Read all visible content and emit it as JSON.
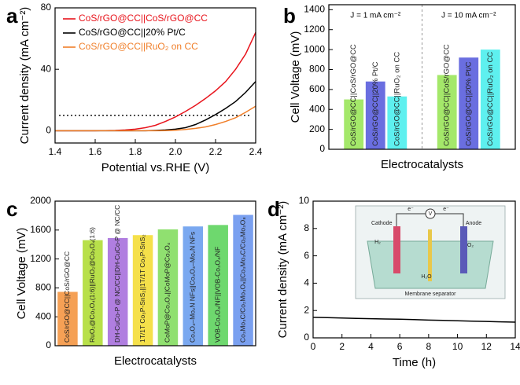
{
  "chart_data": [
    {
      "type": "line",
      "panel_label": "a",
      "xlabel": "Potential vs.RHE (V)",
      "ylabel": "Current density (mA cm⁻²)",
      "x": [
        1.4,
        1.45,
        1.5,
        1.55,
        1.6,
        1.65,
        1.7,
        1.75,
        1.8,
        1.85,
        1.9,
        1.95,
        2.0,
        2.05,
        2.1,
        2.15,
        2.2,
        2.25,
        2.3,
        2.35,
        2.4
      ],
      "series": [
        {
          "name": "CoS/rGO@CC||CoS/rGO@CC",
          "color": "#e8141c",
          "values": [
            0,
            0,
            0,
            0,
            0,
            0.1,
            0.2,
            0.5,
            1,
            2,
            3.5,
            6,
            9,
            12.5,
            16.5,
            21,
            26,
            32,
            40,
            50,
            64
          ]
        },
        {
          "name": "CoS/rGO@CC||20% Pt/C",
          "color": "#000000",
          "values": [
            0,
            0,
            0,
            0,
            0,
            0,
            0,
            0,
            0,
            0,
            0.2,
            0.5,
            1,
            2,
            4,
            7,
            10.5,
            14.5,
            19,
            25,
            32
          ]
        },
        {
          "name": "CoS/rGO@CC||RuO₂ on CC",
          "color": "#f07f2a",
          "values": [
            0,
            0,
            0,
            0,
            0,
            0,
            0,
            0,
            0,
            0,
            0,
            0.1,
            0.3,
            0.8,
            1.5,
            2.5,
            4,
            6,
            8.5,
            12,
            16
          ]
        }
      ],
      "hline": 10,
      "xlim": [
        1.4,
        2.4
      ],
      "xticks": [
        1.4,
        1.6,
        1.8,
        {
          "value": 2,
          "label": "2.0"
        },
        2.2,
        2.4
      ],
      "ylim": [
        -8,
        80
      ],
      "yticks": [
        0,
        40,
        80
      ],
      "legend": "upper left"
    },
    {
      "type": "bar",
      "panel_label": "b",
      "xlabel": "Electrocatalysts",
      "ylabel": "Cell Voltage (mV)",
      "categories": [
        "CoS/rGO@CC||CoS/rGO@CC",
        "CoS/rGO@CC||20% Pt/C",
        "CoS/rGO@CC||RuO₂ on CC"
      ],
      "colors": [
        "#a4e86a",
        "#6a6ee0",
        "#5ef0ef"
      ],
      "series": [
        {
          "name": "J = 1 mA cm⁻²",
          "values": [
            500,
            680,
            530
          ]
        },
        {
          "name": "J = 10 mA cm⁻²",
          "values": [
            745,
            920,
            1000
          ]
        }
      ],
      "ylim": [
        0,
        1450
      ],
      "yticks": [
        0,
        200,
        400,
        600,
        800,
        1000,
        1200,
        1400
      ]
    },
    {
      "type": "bar",
      "panel_label": "c",
      "xlabel": "Electrocatalysts",
      "ylabel": "Cell Voltage (mV)",
      "categories": [
        "CoS/rGO@CC||CoS/rGO@CC",
        "RuO₂@Co₃O₄(1:6)||RuO₂@Co₃O₄(1:6)",
        "DH-CuCo-P @ NC/CC||DH-CuCo-P @ NC/CC",
        "1T/1T Co₃P-SnS₂||1T/1T Co₃P-SnS₂",
        "CoMoP@Co₃O₄||CoMoP@Co₃O₄",
        "Co₃O₄–Mo₂N NFs||Co₃O₄–Mo₂N NFs",
        "VOB-Co₃O₄/NF||VOB-Co₃O₄/NF",
        "Co₃Mo₃C/Co₂Mo₃O₈||Co₃Mo₃C/Co₂Mo₃O₈"
      ],
      "values": [
        745,
        1460,
        1490,
        1530,
        1610,
        1650,
        1670,
        1810
      ],
      "colors": [
        "#f5a055",
        "#b8e04a",
        "#b07ee0",
        "#f5e04a",
        "#90e070",
        "#7aa8f0",
        "#6ed86e",
        "#7aa0f0"
      ],
      "ylim": [
        0,
        2000
      ],
      "yticks": [
        0,
        400,
        800,
        1200,
        1600,
        2000
      ]
    },
    {
      "type": "line",
      "panel_label": "d",
      "xlabel": "Time (h)",
      "ylabel": "Current density (mA cm⁻²)",
      "x": [
        0,
        1,
        2,
        3,
        4,
        5,
        6,
        7,
        8,
        9,
        10,
        11,
        12,
        13,
        14
      ],
      "values": [
        1.5,
        1.48,
        1.45,
        1.42,
        1.4,
        1.38,
        1.36,
        1.34,
        1.3,
        1.28,
        1.25,
        1.22,
        1.2,
        1.17,
        1.15
      ],
      "color": "#000000",
      "xlim": [
        0,
        14
      ],
      "xticks": [
        0,
        2,
        4,
        6,
        8,
        10,
        12,
        14
      ],
      "ylim": [
        0,
        10
      ],
      "yticks": [
        0,
        2,
        4,
        6,
        8,
        10
      ],
      "inset_labels": [
        "Cathode",
        "Anode",
        "Membrane separator",
        "H₂",
        "O₂",
        "H₂O",
        "V",
        "e⁻",
        "e⁻"
      ]
    }
  ]
}
